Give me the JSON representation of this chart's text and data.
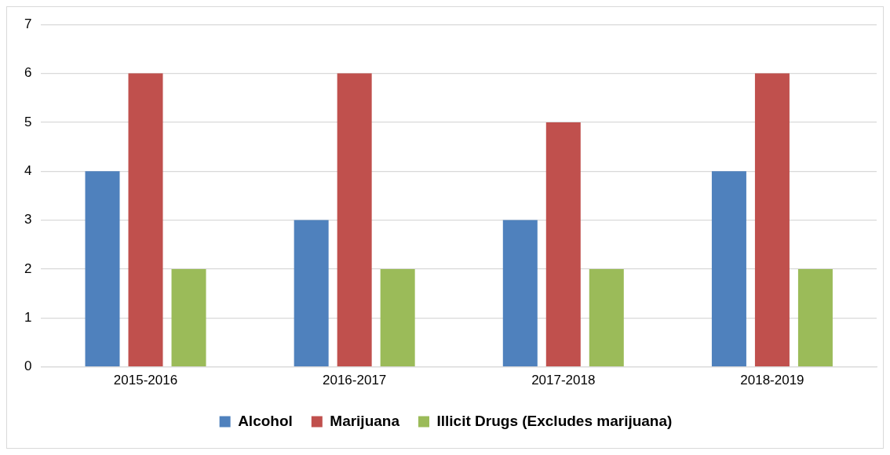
{
  "chart_data": {
    "type": "bar",
    "categories": [
      "2015-2016",
      "2016-2017",
      "2017-2018",
      "2018-2019"
    ],
    "series": [
      {
        "name": "Alcohol",
        "color": "#4f81bd",
        "values": [
          4,
          3,
          3,
          4
        ]
      },
      {
        "name": "Marijuana",
        "color": "#c0504d",
        "values": [
          6,
          6,
          5,
          6
        ]
      },
      {
        "name": "Illicit Drugs (Excludes marijuana)",
        "color": "#9bbb59",
        "values": [
          2,
          2,
          2,
          2
        ]
      }
    ],
    "ylim": [
      0,
      7
    ],
    "yticks": [
      0,
      1,
      2,
      3,
      4,
      5,
      6,
      7
    ],
    "grid": "y",
    "legend": "bottom"
  }
}
